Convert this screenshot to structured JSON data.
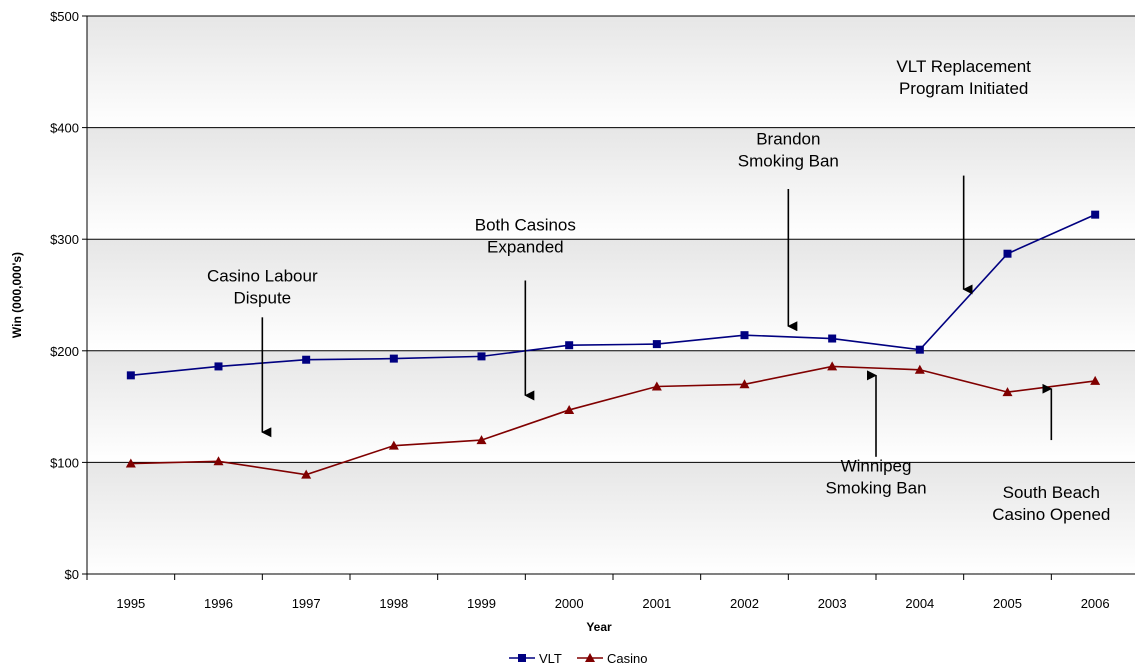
{
  "chart_data": {
    "type": "line",
    "title": "",
    "xlabel": "Year",
    "ylabel": "Win (000,000's)",
    "categories": [
      "1995",
      "1996",
      "1997",
      "1998",
      "1999",
      "2000",
      "2001",
      "2002",
      "2003",
      "2004",
      "2005",
      "2006"
    ],
    "ylim": [
      0,
      500
    ],
    "yticks": [
      0,
      100,
      200,
      300,
      400,
      500
    ],
    "ytick_labels": [
      "$0",
      "$100",
      "$200",
      "$300",
      "$400",
      "$500"
    ],
    "grid": true,
    "legend_position": "bottom",
    "series": [
      {
        "name": "VLT",
        "color": "#000080",
        "marker": "square",
        "values": [
          178,
          186,
          192,
          193,
          195,
          205,
          206,
          214,
          211,
          201,
          287,
          322
        ]
      },
      {
        "name": "Casino",
        "color": "#800000",
        "marker": "triangle",
        "values": [
          99,
          101,
          89,
          115,
          120,
          147,
          168,
          170,
          186,
          183,
          163,
          173
        ]
      }
    ],
    "annotations": [
      {
        "lines": [
          "Casino Labour",
          "Dispute"
        ],
        "x_between": [
          1,
          2
        ],
        "arrow": "down",
        "arrow_from": 230,
        "arrow_to": 127,
        "text_y_value": 262
      },
      {
        "lines": [
          "Both Casinos",
          "Expanded"
        ],
        "x_between": [
          4,
          5
        ],
        "arrow": "down",
        "arrow_from": 263,
        "arrow_to": 160,
        "text_y_value": 308
      },
      {
        "lines": [
          "Brandon",
          "Smoking Ban"
        ],
        "x_between": [
          7,
          8
        ],
        "arrow": "down",
        "arrow_from": 345,
        "arrow_to": 222,
        "text_y_value": 385
      },
      {
        "lines": [
          "VLT Replacement",
          "Program Initiated"
        ],
        "x_between": [
          9,
          10
        ],
        "arrow": "down",
        "arrow_from": 357,
        "arrow_to": 255,
        "text_y_value": 450
      },
      {
        "lines": [
          "Winnipeg",
          "Smoking Ban"
        ],
        "x_between": [
          8,
          9
        ],
        "arrow": "up",
        "arrow_from": 105,
        "arrow_to": 178,
        "text_y_value": 92
      },
      {
        "lines": [
          "South Beach",
          "Casino Opened"
        ],
        "x_between": [
          10,
          11
        ],
        "arrow": "up",
        "arrow_from": 120,
        "arrow_to": 166,
        "text_y_value": 68
      }
    ]
  }
}
